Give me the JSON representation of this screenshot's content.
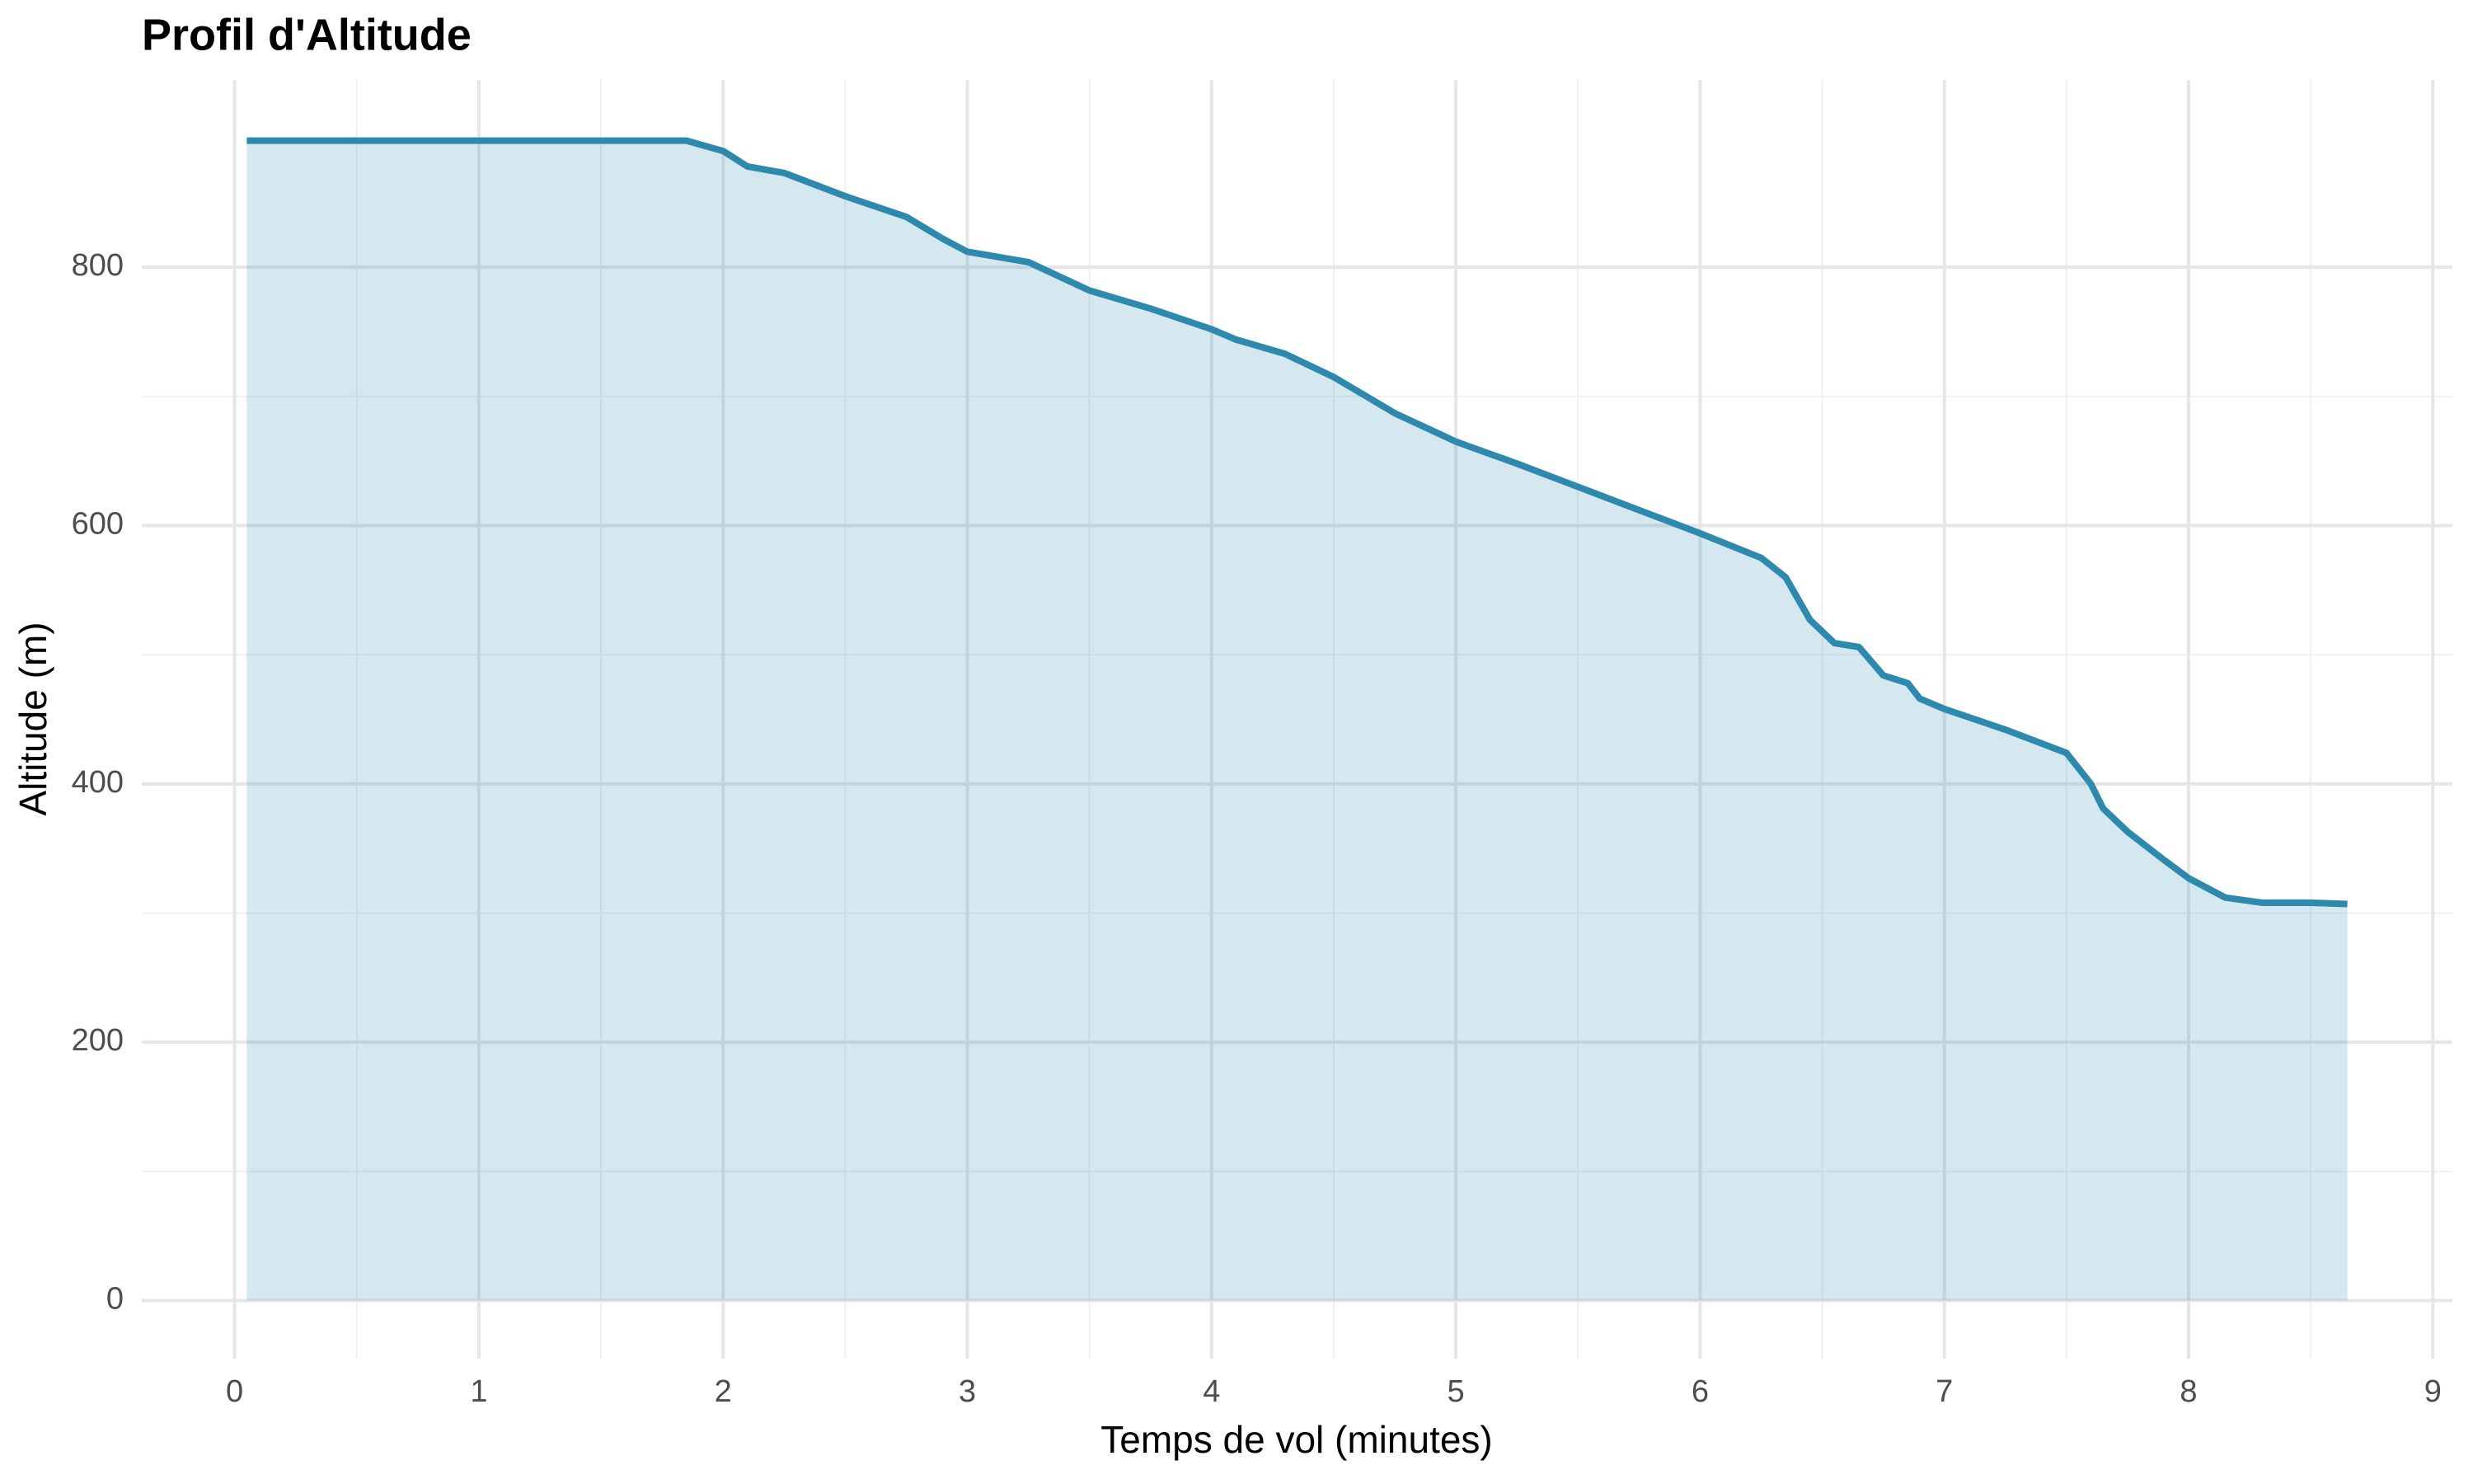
{
  "chart_data": {
    "type": "area",
    "title": "Profil d'Altitude",
    "x_label": "Temps de vol (minutes)",
    "y_label": "Altitude (m)",
    "x": [
      0.05,
      1.85,
      2.0,
      2.1,
      2.25,
      2.5,
      2.75,
      2.9,
      3.0,
      3.25,
      3.5,
      3.75,
      4.0,
      4.1,
      4.3,
      4.5,
      4.75,
      5.0,
      5.25,
      5.5,
      5.75,
      6.0,
      6.25,
      6.35,
      6.45,
      6.55,
      6.65,
      6.75,
      6.85,
      6.9,
      7.0,
      7.25,
      7.5,
      7.6,
      7.65,
      7.75,
      7.9,
      8.0,
      8.15,
      8.3,
      8.5,
      8.65
    ],
    "values": [
      898,
      898,
      890,
      878,
      873,
      855,
      839,
      822,
      812,
      804,
      782,
      768,
      752,
      744,
      733,
      715,
      687,
      665,
      648,
      630,
      612,
      594,
      575,
      560,
      527,
      509,
      506,
      484,
      478,
      466,
      458,
      442,
      424,
      400,
      381,
      363,
      341,
      327,
      312,
      308,
      308,
      307
    ],
    "color": "#2e89ae",
    "fill_opacity": 0.2,
    "xlim": [
      -0.38,
      9.08
    ],
    "ylim": [
      -45,
      945
    ],
    "xticks": [
      0,
      1,
      2,
      3,
      4,
      5,
      6,
      7,
      8,
      9
    ],
    "yticks": [
      0,
      200,
      400,
      600,
      800
    ],
    "grid": true
  }
}
